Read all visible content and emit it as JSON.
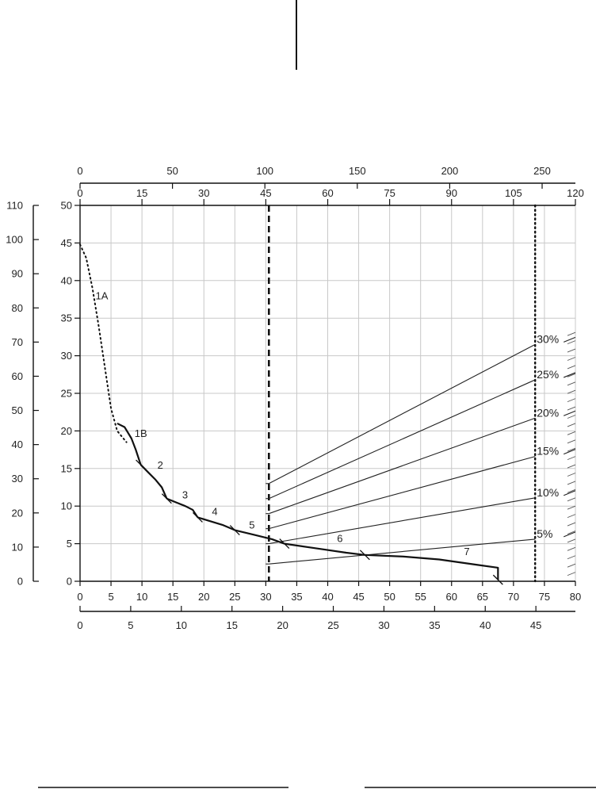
{
  "chart_data": {
    "type": "line",
    "title": "",
    "axes": {
      "bottom_primary": {
        "ticks": [
          "0",
          "5",
          "10",
          "15",
          "20",
          "25",
          "30",
          "35",
          "40",
          "45",
          "50",
          "55",
          "60",
          "65",
          "70",
          "75",
          "80"
        ],
        "range": [
          0,
          80
        ]
      },
      "bottom_secondary": {
        "ticks": [
          "0",
          "5",
          "10",
          "15",
          "20",
          "25",
          "30",
          "35",
          "40",
          "45"
        ],
        "range": [
          0,
          48.9
        ]
      },
      "top_primary": {
        "ticks": [
          "0",
          "15",
          "30",
          "45",
          "60",
          "75",
          "90",
          "105",
          "120"
        ],
        "range": [
          0,
          120
        ]
      },
      "top_secondary": {
        "ticks": [
          "0",
          "50",
          "100",
          "150",
          "200",
          "250"
        ],
        "range": [
          0,
          268
        ]
      },
      "left_primary": {
        "ticks": [
          "0",
          "5",
          "10",
          "15",
          "20",
          "25",
          "30",
          "35",
          "40",
          "45",
          "50"
        ],
        "range": [
          0,
          50
        ]
      },
      "left_secondary": {
        "ticks": [
          "0",
          "10",
          "20",
          "30",
          "40",
          "50",
          "60",
          "70",
          "80",
          "90",
          "100",
          "110"
        ],
        "range": [
          0,
          110
        ]
      }
    },
    "reference_lines": [
      {
        "style": "dashed",
        "x": 30.5
      },
      {
        "style": "dotted",
        "x": 73.5
      }
    ],
    "curve_segments": [
      {
        "label": "1A",
        "style": "dotted",
        "x": [
          0.0,
          1.0,
          2.0,
          3.0,
          4.0,
          5.0,
          6.0,
          7.5
        ],
        "y": [
          44.8,
          43.0,
          39.0,
          34.0,
          28.5,
          23.0,
          20.0,
          18.5
        ]
      },
      {
        "label": "1B",
        "style": "solid",
        "x": [
          6.0,
          7.2,
          8.3,
          9.0,
          9.8
        ],
        "y": [
          21.0,
          20.5,
          19.0,
          17.5,
          15.5
        ]
      },
      {
        "label": "2",
        "x": [
          9.8,
          11.0,
          12.2,
          13.2,
          14.0
        ],
        "y": [
          15.5,
          14.5,
          13.5,
          12.5,
          11.0
        ]
      },
      {
        "label": "3",
        "x": [
          14.0,
          15.5,
          17.0,
          18.2,
          19.0
        ],
        "y": [
          11.0,
          10.5,
          10.0,
          9.5,
          8.5
        ]
      },
      {
        "label": "4",
        "x": [
          19.0,
          21.0,
          23.0,
          25.0
        ],
        "y": [
          8.5,
          8.0,
          7.5,
          6.8
        ]
      },
      {
        "label": "5",
        "x": [
          25.0,
          28.0,
          31.0,
          33.0
        ],
        "y": [
          6.8,
          6.2,
          5.6,
          5.0
        ]
      },
      {
        "label": "6",
        "x": [
          33.0,
          38.0,
          43.0,
          46.0
        ],
        "y": [
          5.0,
          4.4,
          3.8,
          3.5
        ]
      },
      {
        "label": "7",
        "x": [
          46.0,
          52.0,
          58.0,
          64.0,
          67.5,
          67.5
        ],
        "y": [
          3.5,
          3.3,
          2.9,
          2.2,
          1.8,
          0.2
        ]
      }
    ],
    "percent_lines": [
      {
        "label": "30%",
        "x": [
          30.5,
          73.5
        ],
        "y": [
          13.0,
          31.5
        ]
      },
      {
        "label": "25%",
        "x": [
          30.5,
          73.5
        ],
        "y": [
          11.0,
          26.8
        ]
      },
      {
        "label": "20%",
        "x": [
          30.5,
          73.5
        ],
        "y": [
          9.0,
          21.7
        ]
      },
      {
        "label": "15%",
        "x": [
          30.5,
          73.5
        ],
        "y": [
          7.0,
          16.6
        ]
      },
      {
        "label": "10%",
        "x": [
          30.5,
          73.5
        ],
        "y": [
          5.0,
          11.1
        ]
      },
      {
        "label": "5%",
        "x": [
          30.5,
          73.5
        ],
        "y": [
          2.3,
          5.6
        ]
      }
    ],
    "grid": true,
    "legend": "none"
  }
}
